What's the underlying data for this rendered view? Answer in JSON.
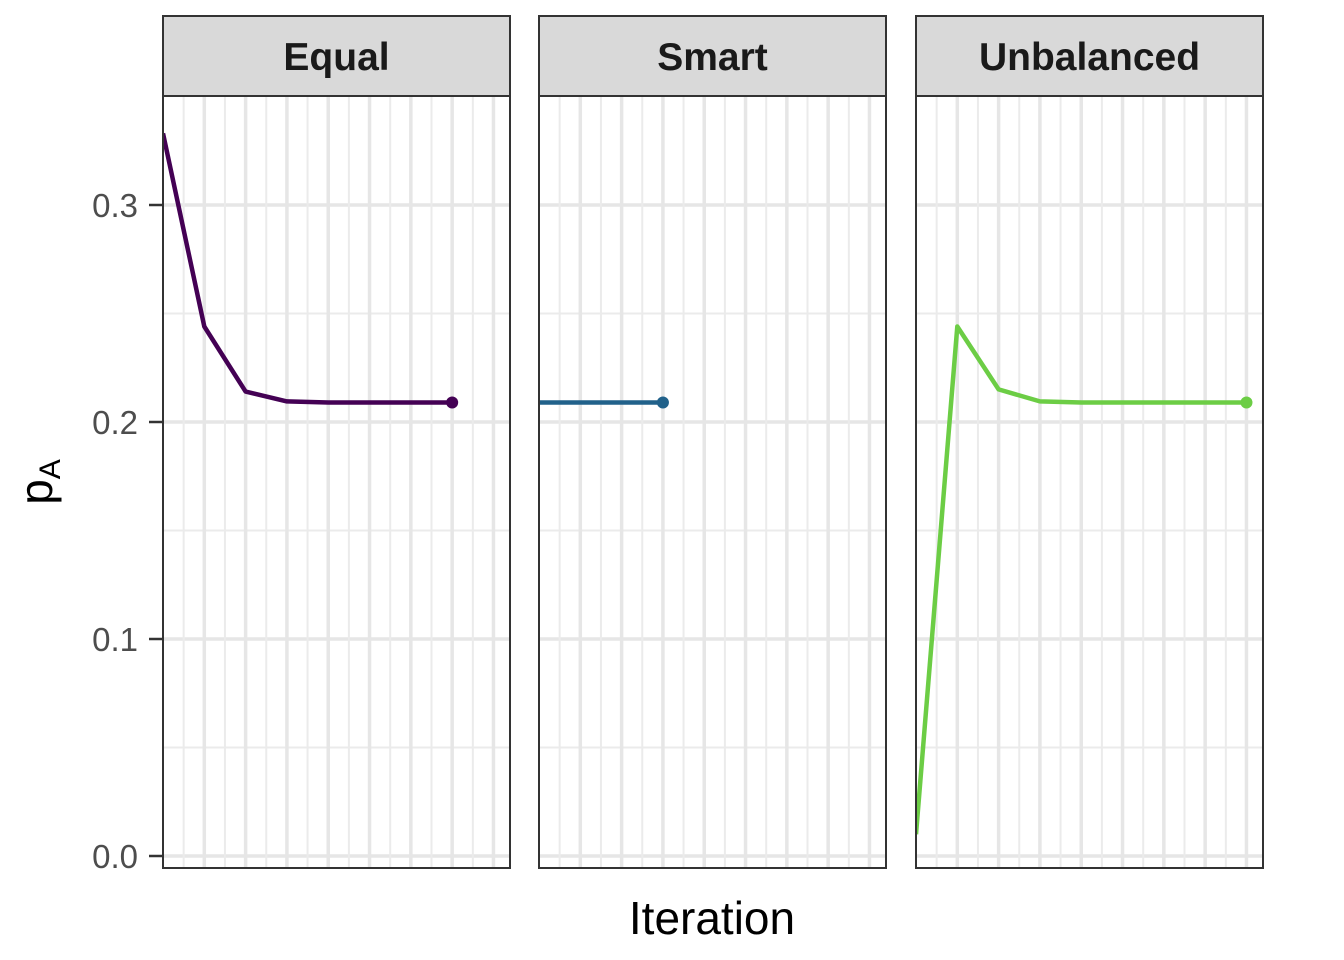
{
  "chart_data": {
    "type": "line",
    "facets": [
      "Equal",
      "Smart",
      "Unbalanced"
    ],
    "xlabel": "Iteration",
    "ylabel": "p",
    "ylabel_subscript": "A",
    "yticks": [
      "0.0",
      "0.1",
      "0.2",
      "0.3"
    ],
    "ytick_values": [
      0.0,
      0.1,
      0.2,
      0.3
    ],
    "ylim": [
      -0.005,
      0.34
    ],
    "xlim": [
      1,
      9.4
    ],
    "grid": true,
    "legend": "none",
    "series": [
      {
        "facet": "Equal",
        "color": "#440154",
        "x": [
          1,
          2,
          3,
          4,
          5,
          6,
          7,
          8
        ],
        "y": [
          0.333,
          0.244,
          0.214,
          0.2095,
          0.209,
          0.209,
          0.209,
          0.209
        ],
        "end_point": true
      },
      {
        "facet": "Smart",
        "color": "#21618A",
        "x": [
          1,
          2,
          3,
          4
        ],
        "y": [
          0.209,
          0.209,
          0.209,
          0.209
        ],
        "end_point": true
      },
      {
        "facet": "Unbalanced",
        "color": "#6CCD45",
        "x": [
          1,
          2,
          3,
          4,
          5,
          6,
          7,
          8,
          9
        ],
        "y": [
          0.01,
          0.244,
          0.215,
          0.2095,
          0.209,
          0.209,
          0.209,
          0.209,
          0.209
        ],
        "end_point": true
      }
    ]
  }
}
